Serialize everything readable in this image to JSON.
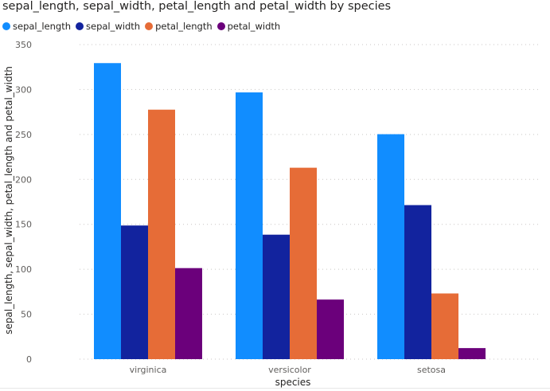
{
  "chart_data": {
    "type": "bar",
    "title": "sepal_length, sepal_width, petal_length and petal_width by species",
    "xlabel": "species",
    "ylabel": "sepal_length, sepal_width, petal_length and petal_width",
    "categories": [
      "virginica",
      "versicolor",
      "setosa"
    ],
    "series": [
      {
        "name": "sepal_length",
        "color": "#118DFF",
        "values": [
          329.4,
          296.8,
          250.3
        ]
      },
      {
        "name": "sepal_width",
        "color": "#12239E",
        "values": [
          148.7,
          138.5,
          171.4
        ]
      },
      {
        "name": "petal_length",
        "color": "#E66C37",
        "values": [
          277.6,
          213.0,
          73.1
        ]
      },
      {
        "name": "petal_width",
        "color": "#6B007B",
        "values": [
          101.3,
          66.3,
          12.3
        ]
      }
    ],
    "ylim": [
      0,
      350
    ],
    "yticks": [
      0,
      50,
      100,
      150,
      200,
      250,
      300,
      350
    ],
    "grid": true,
    "legend_position": "top-left"
  }
}
